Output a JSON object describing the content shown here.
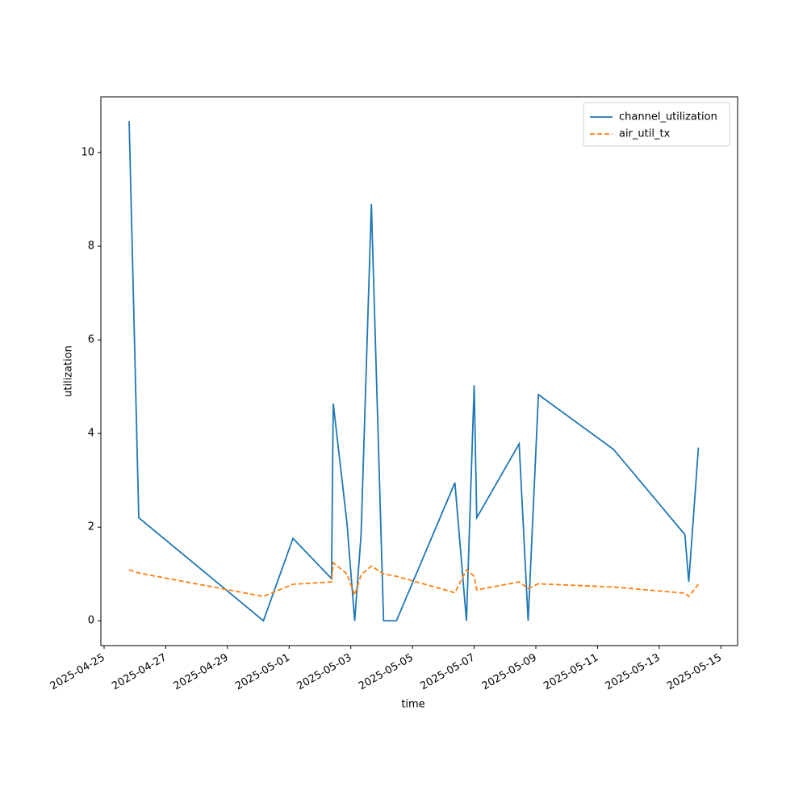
{
  "chart_data": {
    "type": "line",
    "x_label": "time",
    "y_label": "utilization",
    "x": [
      "2025-04-25 19:30",
      "2025-04-26 03:00",
      "2025-04-30 04:00",
      "2025-05-01 03:00",
      "2025-05-02 09:00",
      "2025-05-02 10:20",
      "2025-05-02 21:00",
      "2025-05-03 03:00",
      "2025-05-03 08:00",
      "2025-05-03 16:00",
      "2025-05-04 01:30",
      "2025-05-04 11:30",
      "2025-05-06 09:00",
      "2025-05-06 18:00",
      "2025-05-07 00:00",
      "2025-05-07 02:00",
      "2025-05-08 11:00",
      "2025-05-08 18:00",
      "2025-05-09 02:00",
      "2025-05-11 12:30",
      "2025-05-13 20:00",
      "2025-05-13 23:00",
      "2025-05-14 06:30"
    ],
    "series": [
      {
        "name": "channel_utilization",
        "color": "#1f77b4",
        "dash": "solid",
        "values": [
          10.67,
          2.2,
          0,
          1.76,
          0.9,
          4.64,
          2.09,
          0,
          1.84,
          8.9,
          0,
          0,
          2.95,
          0,
          5.03,
          2.2,
          3.78,
          0,
          4.83,
          3.66,
          1.84,
          0.83,
          3.7
        ]
      },
      {
        "name": "air_util_tx",
        "color": "#ff7f0e",
        "dash": "dashed",
        "values": [
          1.09,
          1.02,
          0.52,
          0.78,
          0.83,
          1.24,
          1.0,
          0.55,
          0.98,
          1.17,
          1.0,
          0.95,
          0.6,
          1.09,
          0.95,
          0.66,
          0.83,
          0.69,
          0.79,
          0.72,
          0.59,
          0.52,
          0.78
        ]
      }
    ],
    "xlim": [
      "2025-04-24 21:30",
      "2025-05-15 13:00"
    ],
    "xticks": [
      "2025-04-25",
      "2025-04-27",
      "2025-04-29",
      "2025-05-01",
      "2025-05-03",
      "2025-05-05",
      "2025-05-07",
      "2025-05-09",
      "2025-05-11",
      "2025-05-13",
      "2025-05-15"
    ],
    "ylim": [
      -0.53,
      11.19
    ],
    "yticks": [
      0,
      2,
      4,
      6,
      8,
      10
    ],
    "grid": false,
    "legend": "upper right"
  }
}
